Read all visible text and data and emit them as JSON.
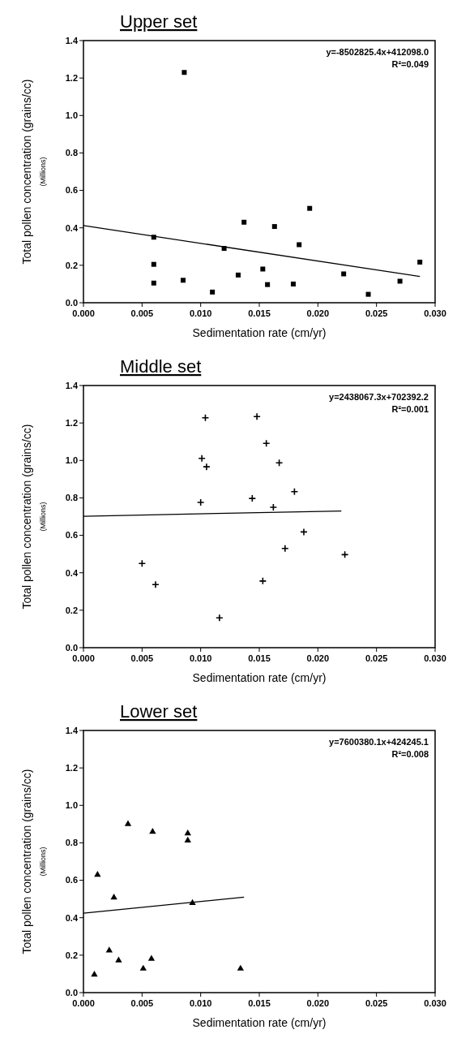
{
  "chart_data": [
    {
      "type": "scatter",
      "title": "Upper set",
      "xlabel": "Sedimentation rate (cm/yr)",
      "ylabel": "Total pollen concentration (grains/cc)\n(Millions)",
      "xlim": [
        0,
        0.03
      ],
      "ylim": [
        0,
        1.4
      ],
      "xticks": [
        {
          "value": 0,
          "label": "0.000"
        },
        {
          "value": 0.005,
          "label": "0.005"
        },
        {
          "value": 0.01,
          "label": "0.010"
        },
        {
          "value": 0.015,
          "label": "0.015"
        },
        {
          "value": 0.02,
          "label": "0.020"
        },
        {
          "value": 0.025,
          "label": "0.025"
        },
        {
          "value": 0.03,
          "label": "0.030"
        }
      ],
      "yticks": [
        {
          "value": 0,
          "label": "0.0"
        },
        {
          "value": 0.2,
          "label": "0.2"
        },
        {
          "value": 0.4,
          "label": "0.4"
        },
        {
          "value": 0.6,
          "label": "0.6"
        },
        {
          "value": 0.8,
          "label": "0.8"
        },
        {
          "value": 1,
          "label": "1.0"
        },
        {
          "value": 1.2,
          "label": "1.2"
        },
        {
          "value": 1.4,
          "label": "1.4"
        }
      ],
      "grid": false,
      "annotations": [
        "y=-8502825.4x+412098.0",
        "R²=0.049"
      ],
      "series": [
        {
          "color": "#000000",
          "marker": "square",
          "x": [
            0.006,
            0.006,
            0.006,
            0.0085,
            0.0086,
            0.011,
            0.012,
            0.0132,
            0.0137,
            0.0153,
            0.0157,
            0.0163,
            0.0179,
            0.0184,
            0.0193,
            0.0222,
            0.0243,
            0.027,
            0.0287
          ],
          "values": [
            0.35,
            0.205,
            0.105,
            0.12,
            1.23,
            0.057,
            0.29,
            0.148,
            0.43,
            0.18,
            0.097,
            0.407,
            0.1,
            0.31,
            0.504,
            0.154,
            0.045,
            0.115,
            0.217
          ]
        },
        {
          "type": "line",
          "color": "#000000",
          "x": [
            0,
            0.0287
          ],
          "values": [
            0.412,
            0.14
          ]
        }
      ]
    },
    {
      "type": "scatter",
      "title": "Middle set",
      "xlabel": "Sedimentation rate (cm/yr)",
      "ylabel": "Total pollen concentration (grains/cc)\n(Millions)",
      "xlim": [
        0,
        0.03
      ],
      "ylim": [
        0,
        1.4
      ],
      "xticks": [
        {
          "value": 0,
          "label": "0.000"
        },
        {
          "value": 0.005,
          "label": "0.005"
        },
        {
          "value": 0.01,
          "label": "0.010"
        },
        {
          "value": 0.015,
          "label": "0.015"
        },
        {
          "value": 0.02,
          "label": "0.020"
        },
        {
          "value": 0.025,
          "label": "0.025"
        },
        {
          "value": 0.03,
          "label": "0.030"
        }
      ],
      "yticks": [
        {
          "value": 0,
          "label": "0.0"
        },
        {
          "value": 0.2,
          "label": "0.2"
        },
        {
          "value": 0.4,
          "label": "0.4"
        },
        {
          "value": 0.6,
          "label": "0.6"
        },
        {
          "value": 0.8,
          "label": "0.8"
        },
        {
          "value": 1,
          "label": "1.0"
        },
        {
          "value": 1.2,
          "label": "1.2"
        },
        {
          "value": 1.4,
          "label": "1.4"
        }
      ],
      "grid": false,
      "annotations": [
        "y=2438067.3x+702392.2",
        "R²=0.001"
      ],
      "series": [
        {
          "color": "#000000",
          "marker": "cross",
          "x": [
            0.005,
            0.00615,
            0.01,
            0.0101,
            0.0104,
            0.0105,
            0.0116,
            0.0144,
            0.0148,
            0.0153,
            0.0156,
            0.0162,
            0.0167,
            0.0172,
            0.018,
            0.0188,
            0.0223
          ],
          "values": [
            0.45,
            0.337,
            0.776,
            1.011,
            1.228,
            0.966,
            0.159,
            0.797,
            1.234,
            0.356,
            1.091,
            0.75,
            0.987,
            0.53,
            0.833,
            0.618,
            0.497
          ]
        },
        {
          "type": "line",
          "color": "#000000",
          "x": [
            0,
            0.022
          ],
          "values": [
            0.702,
            0.73
          ]
        }
      ]
    },
    {
      "type": "scatter",
      "title": "Lower set",
      "xlabel": "Sedimentation rate (cm/yr)",
      "ylabel": "Total pollen concentration (grains/cc)\n(Millions)",
      "xlim": [
        0,
        0.03
      ],
      "ylim": [
        0,
        1.4
      ],
      "xticks": [
        {
          "value": 0,
          "label": "0.000"
        },
        {
          "value": 0.005,
          "label": "0.005"
        },
        {
          "value": 0.01,
          "label": "0.010"
        },
        {
          "value": 0.015,
          "label": "0.015"
        },
        {
          "value": 0.02,
          "label": "0.020"
        },
        {
          "value": 0.025,
          "label": "0.025"
        },
        {
          "value": 0.03,
          "label": "0.030"
        }
      ],
      "yticks": [
        {
          "value": 0,
          "label": "0.0"
        },
        {
          "value": 0.2,
          "label": "0.2"
        },
        {
          "value": 0.4,
          "label": "0.4"
        },
        {
          "value": 0.6,
          "label": "0.6"
        },
        {
          "value": 0.8,
          "label": "0.8"
        },
        {
          "value": 1,
          "label": "1.0"
        },
        {
          "value": 1.2,
          "label": "1.2"
        },
        {
          "value": 1.4,
          "label": "1.4"
        }
      ],
      "grid": false,
      "annotations": [
        "y=7600380.1x+424245.1",
        "R²=0.008"
      ],
      "series": [
        {
          "color": "#000000",
          "marker": "triangle",
          "x": [
            0.00093,
            0.0012,
            0.0022,
            0.0026,
            0.003,
            0.0038,
            0.0051,
            0.0058,
            0.0059,
            0.0089,
            0.0089,
            0.0093,
            0.0134
          ],
          "values": [
            0.096,
            0.629,
            0.225,
            0.508,
            0.172,
            0.9,
            0.128,
            0.181,
            0.859,
            0.85,
            0.812,
            0.479,
            0.128
          ]
        },
        {
          "type": "line",
          "color": "#000000",
          "x": [
            0,
            0.0137
          ],
          "values": [
            0.424,
            0.51
          ]
        }
      ]
    }
  ]
}
